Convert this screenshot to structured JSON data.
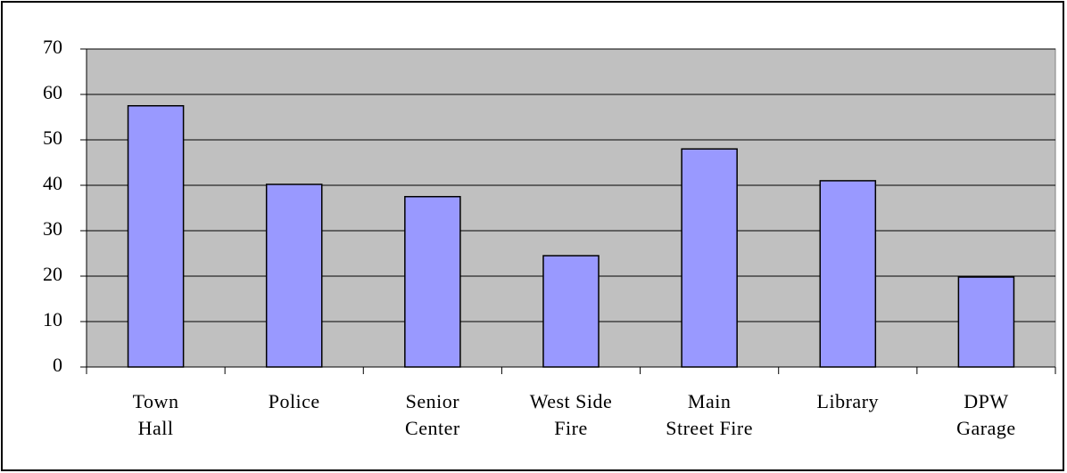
{
  "chart_data": {
    "type": "bar",
    "categories": [
      "Town\nHall",
      "Police",
      "Senior\nCenter",
      "West Side\nFire",
      "Main\nStreet Fire",
      "Library",
      "DPW\nGarage"
    ],
    "values": [
      57.5,
      40.2,
      37.5,
      24.5,
      48,
      41,
      19.8
    ],
    "color": "#9999ff",
    "ylim": [
      0,
      70
    ],
    "yticks": [
      0,
      10,
      20,
      30,
      40,
      50,
      60,
      70
    ],
    "grid": true
  }
}
